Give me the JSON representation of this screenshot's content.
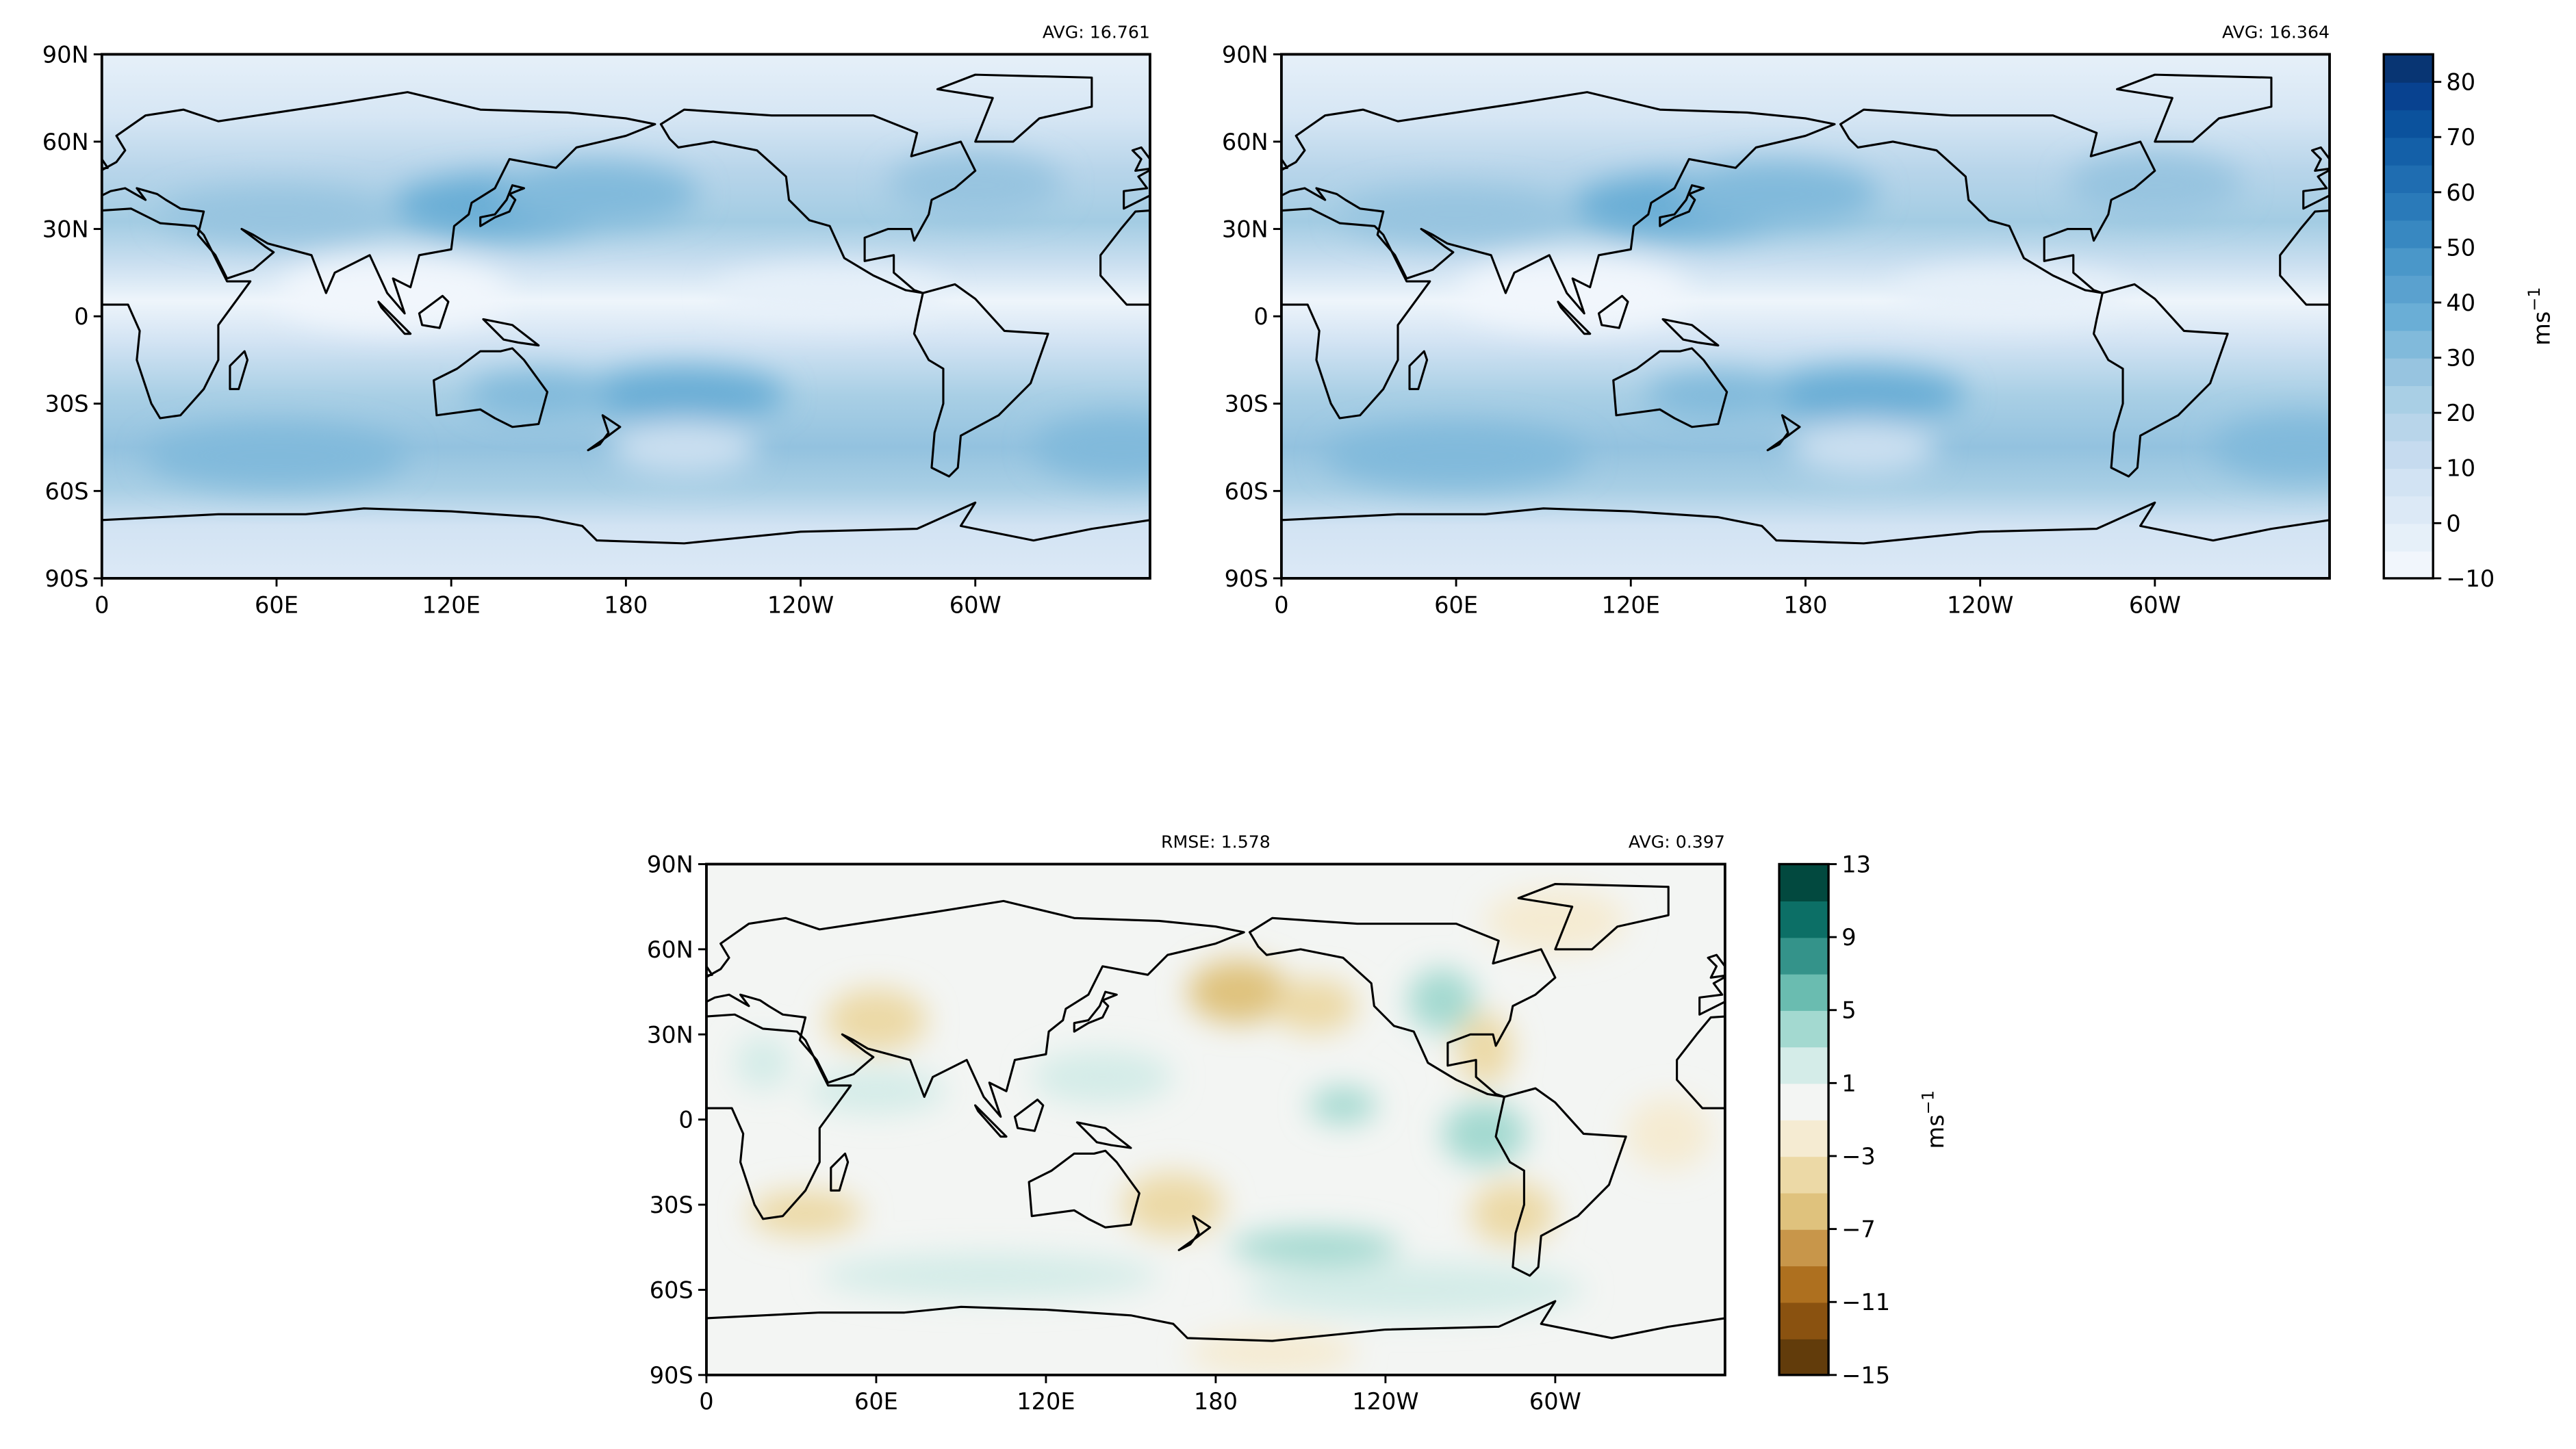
{
  "chart_data": [
    {
      "type": "heatmap",
      "kind": "filled-contour-map",
      "title_right": "AVG: 16.761",
      "x_ticks": [
        "0",
        "60E",
        "120E",
        "180",
        "120W",
        "60W"
      ],
      "x_tick_lons": [
        0,
        60,
        120,
        180,
        240,
        300
      ],
      "y_ticks": [
        "90N",
        "60N",
        "30N",
        "0",
        "30S",
        "60S",
        "90S"
      ],
      "y_tick_lats": [
        90,
        60,
        30,
        0,
        -30,
        -60,
        -90
      ],
      "xlim": [
        0,
        360
      ],
      "ylim": [
        -90,
        90
      ],
      "colormap": "Blues"
    },
    {
      "type": "heatmap",
      "kind": "filled-contour-map",
      "title_right": "AVG: 16.364",
      "x_ticks": [
        "0",
        "60E",
        "120E",
        "180",
        "120W",
        "60W"
      ],
      "x_tick_lons": [
        0,
        60,
        120,
        180,
        240,
        300
      ],
      "y_ticks": [
        "90N",
        "60N",
        "30N",
        "0",
        "30S",
        "60S",
        "90S"
      ],
      "y_tick_lats": [
        90,
        60,
        30,
        0,
        -30,
        -60,
        -90
      ],
      "xlim": [
        0,
        360
      ],
      "ylim": [
        -90,
        90
      ],
      "colormap": "Blues",
      "colorbar": {
        "label": "ms",
        "label_sup": "−1",
        "range": [
          -10,
          85
        ],
        "step": 5,
        "ticks": [
          "80",
          "70",
          "60",
          "50",
          "40",
          "30",
          "20",
          "10",
          "0",
          "−10"
        ],
        "tick_values": [
          80,
          70,
          60,
          50,
          40,
          30,
          20,
          10,
          0,
          -10
        ],
        "colors": [
          "#f1f6fc",
          "#e6f0f9",
          "#dce9f6",
          "#d2e3f3",
          "#c6dbef",
          "#b8d5ea",
          "#a9cfe5",
          "#97c4e0",
          "#81badb",
          "#6aaed6",
          "#5aa1cf",
          "#4a97c9",
          "#3888c1",
          "#2a7ab9",
          "#1f6db1",
          "#1460a8",
          "#0b529d",
          "#084290",
          "#083573"
        ]
      }
    },
    {
      "type": "heatmap",
      "kind": "filled-contour-map",
      "title_center": "RMSE: 1.578",
      "title_right": "AVG: 0.397",
      "x_ticks": [
        "0",
        "60E",
        "120E",
        "180",
        "120W",
        "60W"
      ],
      "x_tick_lons": [
        0,
        60,
        120,
        180,
        240,
        300
      ],
      "y_ticks": [
        "90N",
        "60N",
        "30N",
        "0",
        "30S",
        "60S",
        "90S"
      ],
      "y_tick_lats": [
        90,
        60,
        30,
        0,
        -30,
        -60,
        -90
      ],
      "xlim": [
        0,
        360
      ],
      "ylim": [
        -90,
        90
      ],
      "colormap": "BrBG",
      "colorbar": {
        "label": "ms",
        "label_sup": "−1",
        "range": [
          -15,
          13
        ],
        "step": 2,
        "ticks": [
          "13",
          "9",
          "5",
          "1",
          "−3",
          "−7",
          "−11",
          "−15"
        ],
        "tick_values": [
          13,
          9,
          5,
          1,
          -3,
          -7,
          -11,
          -15
        ],
        "colors": [
          "#623c0b",
          "#8a5210",
          "#ae701f",
          "#c8964a",
          "#dfc27d",
          "#ecd9a6",
          "#f5ebd2",
          "#f3f5f3",
          "#d4ece8",
          "#a3d9d0",
          "#6abcb0",
          "#34938a",
          "#0c6f66",
          "#02493f"
        ]
      }
    }
  ]
}
